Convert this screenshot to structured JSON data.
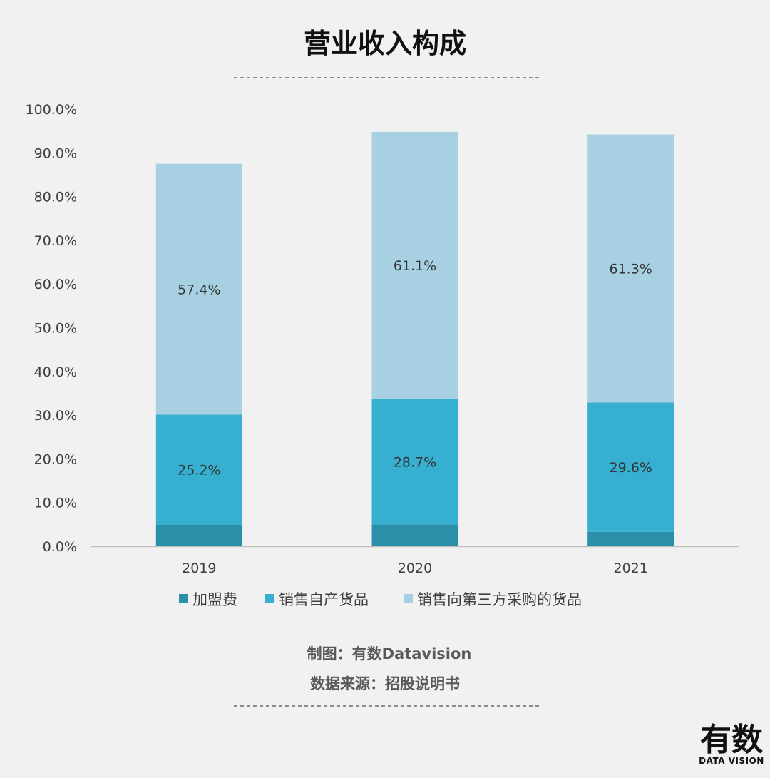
{
  "chart_data": {
    "type": "bar",
    "stacked": true,
    "title": "营业收入构成",
    "categories": [
      "2019",
      "2020",
      "2021"
    ],
    "series": [
      {
        "name": "加盟费",
        "values": [
          4.9,
          5.0,
          3.3
        ],
        "color": "#2a90a8",
        "show_labels": false
      },
      {
        "name": "销售自产货品",
        "values": [
          25.2,
          28.7,
          29.6
        ],
        "color": "#36afd0",
        "show_labels": true
      },
      {
        "name": "销售向第三方采购的货品",
        "values": [
          57.4,
          61.1,
          61.3
        ],
        "color": "#a7d0e2",
        "show_labels": true
      }
    ],
    "ylim": [
      0,
      100
    ],
    "yticks": [
      "0.0%",
      "10.0%",
      "20.0%",
      "30.0%",
      "40.0%",
      "50.0%",
      "60.0%",
      "70.0%",
      "80.0%",
      "90.0%",
      "100.0%"
    ],
    "grid": false,
    "legend_position": "bottom",
    "value_suffix": "%"
  },
  "footer": {
    "credit": "制图：有数Datavision",
    "source": "数据来源：招股说明书"
  },
  "logo": {
    "main": "有数",
    "sub": "DATA VISION"
  }
}
